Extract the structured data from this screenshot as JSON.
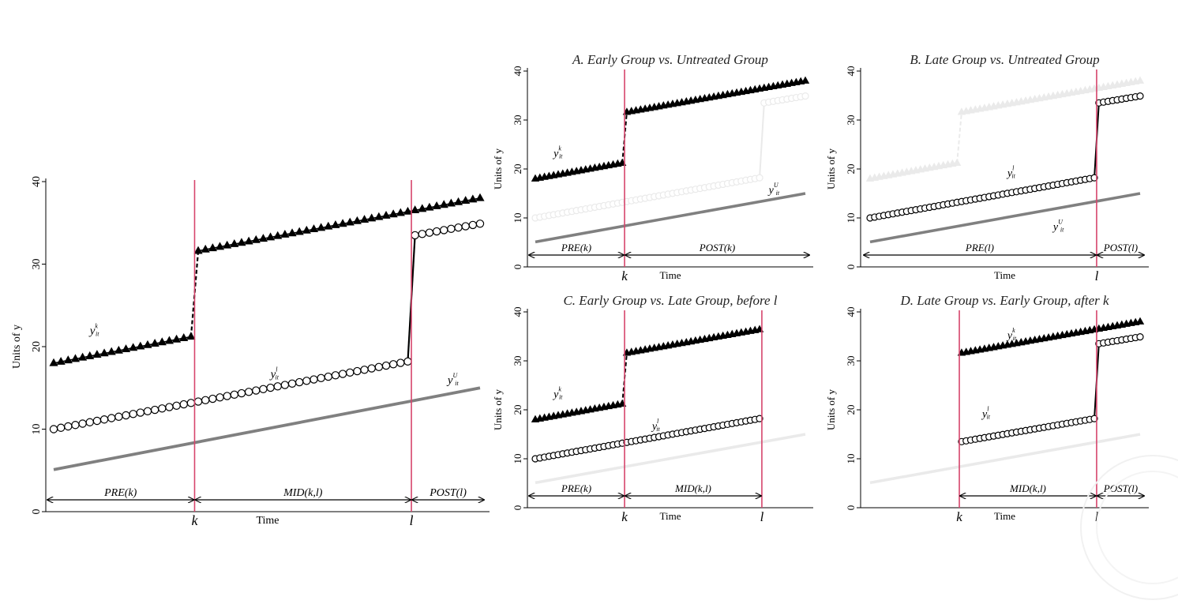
{
  "watermark": "university-seal",
  "colors": {
    "vline": "#d6456c",
    "untreated": "#808080",
    "faded": "#eaeaea",
    "dark": "#000000"
  },
  "chart_data": [
    {
      "type": "line",
      "title": "",
      "xlabel": "Time",
      "ylabel": "Units of y",
      "ylim": [
        0,
        40
      ],
      "yticks": [
        0,
        10,
        20,
        30,
        40
      ],
      "t_range": [
        1,
        60
      ],
      "vlines": [
        {
          "t": 20.5,
          "label": "k"
        },
        {
          "t": 50.5,
          "label": "l"
        }
      ],
      "series": [
        {
          "id": "early",
          "name": "y^k_it",
          "marker": "triangle",
          "style": "active",
          "t_start": 1,
          "t_end": 60,
          "jump_t": 20.5,
          "pre": [
            18.0,
            21.2
          ],
          "post": [
            31.6,
            38.0
          ]
        },
        {
          "id": "late",
          "name": "y^l_it",
          "marker": "circle",
          "style": "active",
          "t_start": 1,
          "t_end": 60,
          "jump_t": 50.5,
          "pre": [
            10.0,
            18.2
          ],
          "post": [
            33.5,
            34.9
          ]
        },
        {
          "id": "untreated",
          "name": "y^U_it",
          "marker": "none",
          "style": "untreated",
          "t_start": 1,
          "t_end": 60,
          "pre": [
            5.1,
            15.0
          ]
        }
      ],
      "series_labels": [
        {
          "id": "early",
          "base": "y",
          "sup": "k",
          "sub": "it",
          "t": 6,
          "y": 21.5
        },
        {
          "id": "late",
          "base": "y",
          "sup": "l",
          "sub": "it",
          "t": 31,
          "y": 16.2
        },
        {
          "id": "untreated",
          "base": "y",
          "sup": "U",
          "sub": "it",
          "t": 55.5,
          "y": 15.5
        }
      ],
      "periods": [
        {
          "label": "PRE(k)",
          "from": 1,
          "to": 20.5
        },
        {
          "label": "MID(k,l)",
          "from": 20.5,
          "to": 50.5
        },
        {
          "label": "POST(l)",
          "from": 50.5,
          "to": 60
        }
      ]
    },
    {
      "type": "line",
      "title": "A. Early Group vs. Untreated Group",
      "xlabel": "Time",
      "ylabel": "Units of y",
      "ylim": [
        0,
        40
      ],
      "yticks": [
        0,
        10,
        20,
        30,
        40
      ],
      "t_range": [
        1,
        60
      ],
      "vlines": [
        {
          "t": 20.5,
          "label": "k"
        }
      ],
      "series": [
        {
          "id": "early",
          "name": "y^k_it",
          "marker": "triangle",
          "style": "active",
          "t_start": 1,
          "t_end": 60,
          "jump_t": 20.5,
          "pre": [
            18.0,
            21.2
          ],
          "post": [
            31.6,
            38.0
          ]
        },
        {
          "id": "late",
          "name": "y^l_it",
          "marker": "circle",
          "style": "faded",
          "t_start": 1,
          "t_end": 60,
          "jump_t": 50.5,
          "pre": [
            10.0,
            18.2
          ],
          "post": [
            33.5,
            34.9
          ]
        },
        {
          "id": "untreated",
          "name": "y^U_it",
          "marker": "none",
          "style": "untreated",
          "t_start": 1,
          "t_end": 60,
          "pre": [
            5.1,
            15.0
          ]
        }
      ],
      "series_labels": [
        {
          "id": "early",
          "base": "y",
          "sup": "k",
          "sub": "it",
          "t": 5,
          "y": 22.5
        },
        {
          "id": "untreated",
          "base": "y",
          "sup": "U",
          "sub": "it",
          "t": 52,
          "y": 15
        }
      ],
      "periods": [
        {
          "label": "PRE(k)",
          "from": 1,
          "to": 20.5
        },
        {
          "label": "POST(k)",
          "from": 20.5,
          "to": 60
        }
      ]
    },
    {
      "type": "line",
      "title": "B. Late Group vs. Untreated Group",
      "xlabel": "Time",
      "ylabel": "Units of y",
      "ylim": [
        0,
        40
      ],
      "yticks": [
        0,
        10,
        20,
        30,
        40
      ],
      "t_range": [
        1,
        60
      ],
      "vlines": [
        {
          "t": 50.5,
          "label": "l"
        }
      ],
      "series": [
        {
          "id": "early",
          "name": "y^k_it",
          "marker": "triangle",
          "style": "faded",
          "t_start": 1,
          "t_end": 60,
          "jump_t": 20.5,
          "pre": [
            18.0,
            21.2
          ],
          "post": [
            31.6,
            38.0
          ]
        },
        {
          "id": "late",
          "name": "y^l_it",
          "marker": "circle",
          "style": "active",
          "t_start": 1,
          "t_end": 60,
          "jump_t": 50.5,
          "pre": [
            10.0,
            18.2
          ],
          "post": [
            33.5,
            34.9
          ]
        },
        {
          "id": "untreated",
          "name": "y^U_it",
          "marker": "none",
          "style": "untreated",
          "t_start": 1,
          "t_end": 60,
          "pre": [
            5.1,
            15.0
          ]
        }
      ],
      "series_labels": [
        {
          "id": "late",
          "base": "y",
          "sup": "l",
          "sub": "it",
          "t": 31,
          "y": 18.5
        },
        {
          "id": "untreated",
          "base": "y",
          "sup": "U",
          "sub": "it",
          "t": 41,
          "y": 7.5
        }
      ],
      "periods": [
        {
          "label": "PRE(l)",
          "from": 1,
          "to": 50.5
        },
        {
          "label": "POST(l)",
          "from": 50.5,
          "to": 60
        }
      ]
    },
    {
      "type": "line",
      "title": "C. Early Group vs. Late Group, before l",
      "xlabel": "Time",
      "ylabel": "Units of y",
      "ylim": [
        0,
        40
      ],
      "yticks": [
        0,
        10,
        20,
        30,
        40
      ],
      "t_range": [
        1,
        60
      ],
      "vlines": [
        {
          "t": 20.5,
          "label": "k"
        },
        {
          "t": 50.5,
          "label": "l"
        }
      ],
      "series": [
        {
          "id": "early",
          "name": "y^k_it",
          "marker": "triangle",
          "style": "active",
          "t_start": 1,
          "t_end": 50,
          "jump_t": 20.5,
          "pre": [
            18.0,
            21.2
          ],
          "post": [
            31.6,
            36.4
          ]
        },
        {
          "id": "late",
          "name": "y^l_it",
          "marker": "circle",
          "style": "active",
          "t_start": 1,
          "t_end": 50,
          "pre": [
            10.0,
            18.2
          ]
        },
        {
          "id": "untreated",
          "name": "y^U_it",
          "marker": "none",
          "style": "faded",
          "t_start": 1,
          "t_end": 60,
          "pre": [
            5.1,
            15.0
          ]
        }
      ],
      "series_labels": [
        {
          "id": "early",
          "base": "y",
          "sup": "k",
          "sub": "it",
          "t": 5,
          "y": 22.5
        },
        {
          "id": "late",
          "base": "y",
          "sup": "l",
          "sub": "it",
          "t": 26.5,
          "y": 16
        }
      ],
      "periods": [
        {
          "label": "PRE(k)",
          "from": 1,
          "to": 20.5
        },
        {
          "label": "MID(k,l)",
          "from": 20.5,
          "to": 50.5
        }
      ]
    },
    {
      "type": "line",
      "title": "D. Late Group vs. Early Group, after k",
      "xlabel": "Time",
      "ylabel": "Units of y",
      "ylim": [
        0,
        40
      ],
      "yticks": [
        0,
        10,
        20,
        30,
        40
      ],
      "t_range": [
        1,
        60
      ],
      "vlines": [
        {
          "t": 20.5,
          "label": "k"
        },
        {
          "t": 50.5,
          "label": "l"
        }
      ],
      "series": [
        {
          "id": "early",
          "name": "y^k_it",
          "marker": "triangle",
          "style": "active",
          "t_start": 21,
          "t_end": 60,
          "pre": [
            31.6,
            38.0
          ]
        },
        {
          "id": "late",
          "name": "y^l_it",
          "marker": "circle",
          "style": "active",
          "t_start": 21,
          "t_end": 60,
          "jump_t": 50.5,
          "pre": [
            13.5,
            18.2
          ],
          "post": [
            33.5,
            34.9
          ]
        },
        {
          "id": "untreated",
          "name": "y^U_it",
          "marker": "none",
          "style": "faded",
          "t_start": 1,
          "t_end": 60,
          "pre": [
            5.1,
            15.0
          ]
        }
      ],
      "series_labels": [
        {
          "id": "early",
          "base": "y",
          "sup": "k",
          "sub": "it",
          "t": 31,
          "y": 34.5
        },
        {
          "id": "late",
          "base": "y",
          "sup": "l",
          "sub": "it",
          "t": 25.5,
          "y": 18.5
        }
      ],
      "periods": [
        {
          "label": "MID(k,l)",
          "from": 20.5,
          "to": 50.5
        },
        {
          "label": "POST(l)",
          "from": 50.5,
          "to": 60
        }
      ]
    }
  ]
}
